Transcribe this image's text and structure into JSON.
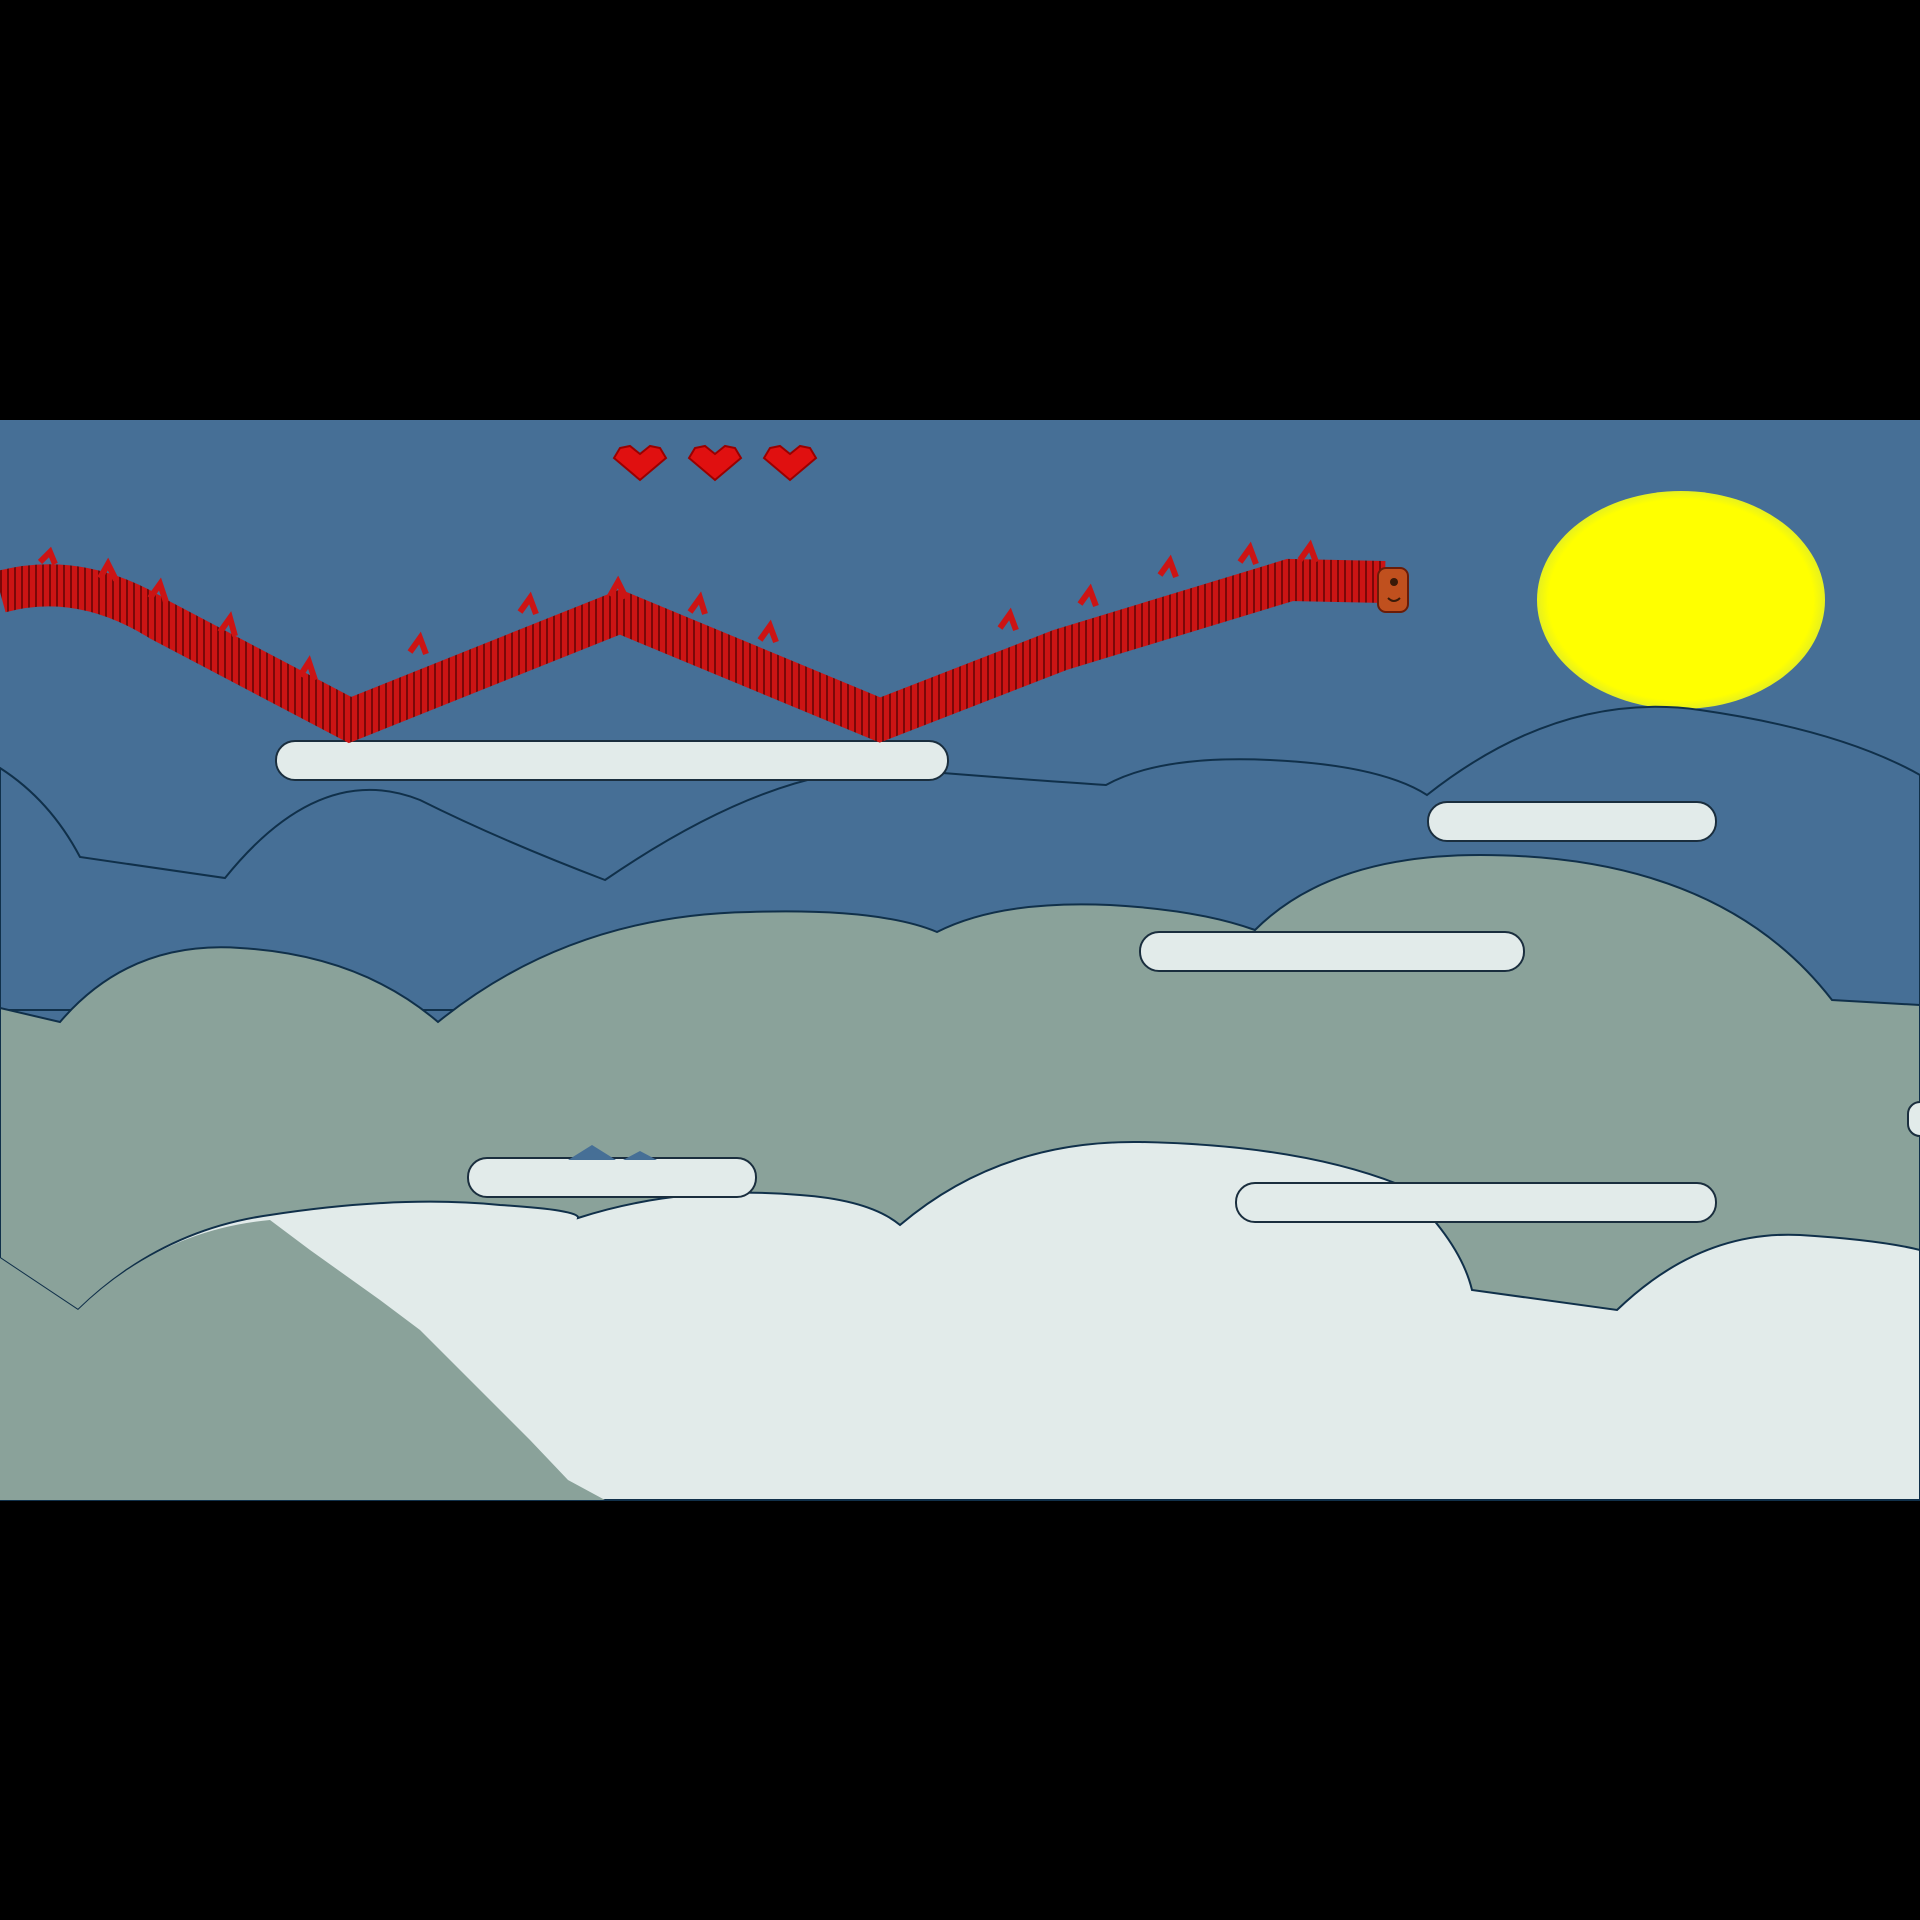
{
  "game": {
    "hud": {
      "lives": 3
    },
    "colors": {
      "letterbox": "#000000",
      "sky": "#466f96",
      "far_hills": "#466f96",
      "mid_hills": "#8aa29a",
      "near_hills": "#e2ebea",
      "hill_outline": "#10304a",
      "sun": "#ffff00",
      "cloud_platform": "#e2ebea",
      "dragon_body": "#cc1414",
      "dragon_stripe": "#7a0808",
      "dragon_head": "#c0501e",
      "heart": "#e01010"
    },
    "icons": {
      "life": "heart-icon",
      "player": "dragon",
      "sun": "sun",
      "platform": "cloud-platform"
    }
  }
}
